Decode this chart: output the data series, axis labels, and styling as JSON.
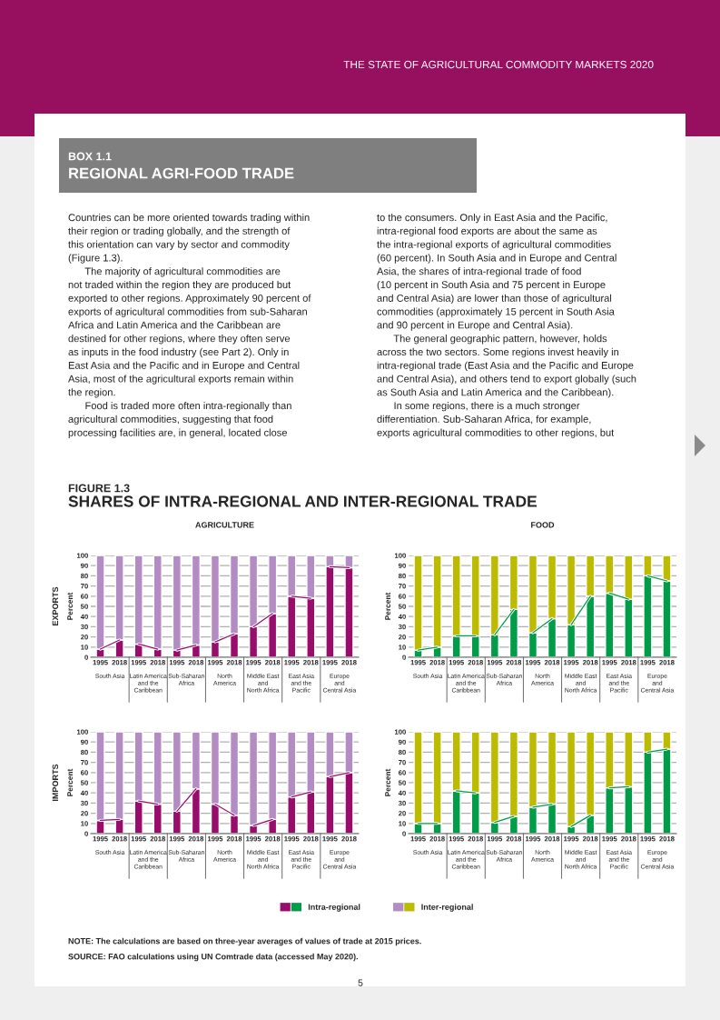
{
  "chart_data": [
    {
      "type": "other",
      "title": "REGIONAL AGRI-FOOD TRADE",
      "subtitle": "BOX 1.1",
      "annotations": [
        "THE STATE OF AGRICULTURAL COMMODITY MARKETS 2020",
        "Countries can be more oriented towards trading within\ntheir region or trading globally, and the strength of\nthis orientation can vary by sector and commodity\n(Figure 1.3).\n      The majority of agricultural commodities are\nnot traded within the region they are produced but\nexported to other regions. Approximately 90 percent of\nexports of agricultural commodities from sub-Saharan\nAfrica and Latin America and the Caribbean are\ndestined for other regions, where they often serve\nas inputs in the food industry (see Part 2). Only in\nEast Asia and the Pacific and in Europe and Central\nAsia, most of the agricultural exports remain within\nthe region.\n      Food is traded more often intra-regionally than\nagricultural commodities, suggesting that food\nprocessing facilities are, in general, located close",
        "to the consumers. Only in East Asia and the Pacific,\nintra-regional food exports are about the same as\nthe intra-regional exports of agricultural commodities\n(60 percent). In South Asia and in Europe and Central\nAsia, the shares of intra-regional trade of food\n(10 percent in South Asia and 75 percent in Europe\nand Central Asia) are lower than those of agricultural\ncommodities (approximately 15 percent in South Asia\nand 90 percent in Europe and Central Asia).\n      The general geographic pattern, however, holds\nacross the two sectors. Some regions invest heavily in\nintra-regional trade (East Asia and the Pacific and Europe\nand Central Asia), and others tend to export globally (such\nas South Asia and Latin America and the Caribbean).\n      In some regions, there is a much stronger\ndifferentiation. Sub-Saharan Africa, for example,\nexports agricultural commodities to other regions, but",
        "FIGURE 1.3",
        "SHARES OF INTRA-REGIONAL AND INTER-REGIONAL TRADE",
        "NOTE: The calculations are based on three-year averages of values of trade at 2015 prices.",
        "SOURCE: FAO calculations using UN Comtrade data (accessed May 2020).",
        "5"
      ]
    },
    {
      "type": "bar",
      "stacked": true,
      "title": "AGRICULTURE",
      "ylabel": "Percent",
      "ylim": [
        0,
        100
      ],
      "yticks": [
        0,
        10,
        20,
        30,
        40,
        50,
        60,
        70,
        80,
        90,
        100
      ],
      "grid": "y",
      "categories": [
        "1995",
        "2018",
        "1995",
        "2018",
        "1995",
        "2018",
        "1995",
        "2018",
        "1995",
        "2018",
        "1995",
        "2018",
        "1995",
        "2018"
      ],
      "legend": "bottom",
      "annotations": [
        "South Asia",
        "Latin America\nand the\nCaribbean",
        "Sub-Saharan\nAfrica",
        "North\nAmerica",
        "Middle East\nand\nNorth Africa",
        "East Asia\nand the\nPacific",
        "Europe\nand\nCentral Asia",
        "EXPORTS"
      ],
      "series": [
        {
          "name": "Intra-regional",
          "color": "#980d6c",
          "values": [
            8,
            17,
            13,
            8,
            7,
            12,
            15,
            23,
            30,
            43,
            60,
            58,
            89,
            88
          ]
        },
        {
          "name": "Inter-regional",
          "color": "#b48cc4",
          "values": [
            92,
            83,
            87,
            92,
            93,
            88,
            85,
            77,
            70,
            57,
            40,
            42,
            11,
            12
          ]
        },
        {
          "type": "line",
          "color": "#980d6c",
          "values": [
            8,
            17,
            13,
            8,
            7,
            12,
            15,
            23,
            30,
            43,
            60,
            58,
            89,
            88
          ]
        }
      ]
    },
    {
      "type": "bar",
      "stacked": true,
      "title": "FOOD",
      "ylabel": "Percent",
      "ylim": [
        0,
        100
      ],
      "yticks": [
        0,
        10,
        20,
        30,
        40,
        50,
        60,
        70,
        80,
        90,
        100
      ],
      "grid": "y",
      "categories": [
        "1995",
        "2018",
        "1995",
        "2018",
        "1995",
        "2018",
        "1995",
        "2018",
        "1995",
        "2018",
        "1995",
        "2018",
        "1995",
        "2018"
      ],
      "annotations": [
        "South Asia",
        "Latin America\nand the\nCaribbean",
        "Sub-Saharan\nAfrica",
        "North\nAmerica",
        "Middle East\nand\nNorth Africa",
        "East Asia\nand the\nPacific",
        "Europe\nand\nCentral Asia"
      ],
      "series": [
        {
          "name": "Intra-regional",
          "color": "#009c47",
          "values": [
            7,
            10,
            21,
            21,
            22,
            47,
            24,
            38,
            32,
            60,
            63,
            57,
            80,
            75
          ]
        },
        {
          "name": "Inter-regional",
          "color": "#bdbb00",
          "values": [
            93,
            90,
            79,
            79,
            78,
            53,
            76,
            62,
            68,
            40,
            37,
            43,
            20,
            25
          ]
        },
        {
          "type": "line",
          "color": "#009c47",
          "values": [
            7,
            10,
            21,
            21,
            22,
            47,
            24,
            38,
            32,
            60,
            63,
            57,
            80,
            75
          ]
        }
      ]
    },
    {
      "type": "bar",
      "stacked": true,
      "ylabel": "Percent",
      "ylim": [
        0,
        100
      ],
      "yticks": [
        0,
        10,
        20,
        30,
        40,
        50,
        60,
        70,
        80,
        90,
        100
      ],
      "grid": "y",
      "categories": [
        "1995",
        "2018",
        "1995",
        "2018",
        "1995",
        "2018",
        "1995",
        "2018",
        "1995",
        "2018",
        "1995",
        "2018",
        "1995",
        "2018"
      ],
      "annotations": [
        "South Asia",
        "Latin America\nand the\nCaribbean",
        "Sub-Saharan\nAfrica",
        "North\nAmerica",
        "Middle East\nand\nNorth Africa",
        "East Asia\nand the\nPacific",
        "Europe\nand\nCentral Asia",
        "IMPORTS"
      ],
      "series": [
        {
          "name": "Intra-regional",
          "color": "#980d6c",
          "values": [
            13,
            14,
            32,
            29,
            22,
            44,
            29,
            18,
            8,
            14,
            36,
            41,
            56,
            60
          ]
        },
        {
          "name": "Inter-regional",
          "color": "#b48cc4",
          "values": [
            87,
            86,
            68,
            71,
            78,
            56,
            71,
            82,
            92,
            86,
            64,
            59,
            44,
            40
          ]
        },
        {
          "type": "line",
          "color": "#980d6c",
          "values": [
            13,
            14,
            32,
            29,
            22,
            44,
            29,
            18,
            8,
            14,
            36,
            41,
            56,
            60
          ]
        }
      ]
    },
    {
      "type": "bar",
      "stacked": true,
      "ylabel": "Percent",
      "ylim": [
        0,
        100
      ],
      "yticks": [
        0,
        10,
        20,
        30,
        40,
        50,
        60,
        70,
        80,
        90,
        100
      ],
      "grid": "y",
      "categories": [
        "1995",
        "2018",
        "1995",
        "2018",
        "1995",
        "2018",
        "1995",
        "2018",
        "1995",
        "2018",
        "1995",
        "2018",
        "1995",
        "2018"
      ],
      "annotations": [
        "South Asia",
        "Latin America\nand the\nCaribbean",
        "Sub-Saharan\nAfrica",
        "North\nAmerica",
        "Middle East\nand\nNorth Africa",
        "East Asia\nand the\nPacific",
        "Europe\nand\nCentral Asia"
      ],
      "series": [
        {
          "name": "Intra-regional",
          "color": "#009c47",
          "values": [
            10,
            10,
            42,
            40,
            11,
            17,
            26,
            29,
            7,
            18,
            45,
            46,
            80,
            83
          ]
        },
        {
          "name": "Inter-regional",
          "color": "#bdbb00",
          "values": [
            90,
            90,
            58,
            60,
            89,
            83,
            74,
            71,
            93,
            82,
            55,
            54,
            20,
            17
          ]
        },
        {
          "type": "line",
          "color": "#009c47",
          "values": [
            10,
            10,
            42,
            40,
            11,
            17,
            26,
            29,
            7,
            18,
            45,
            46,
            80,
            83
          ]
        }
      ]
    }
  ]
}
